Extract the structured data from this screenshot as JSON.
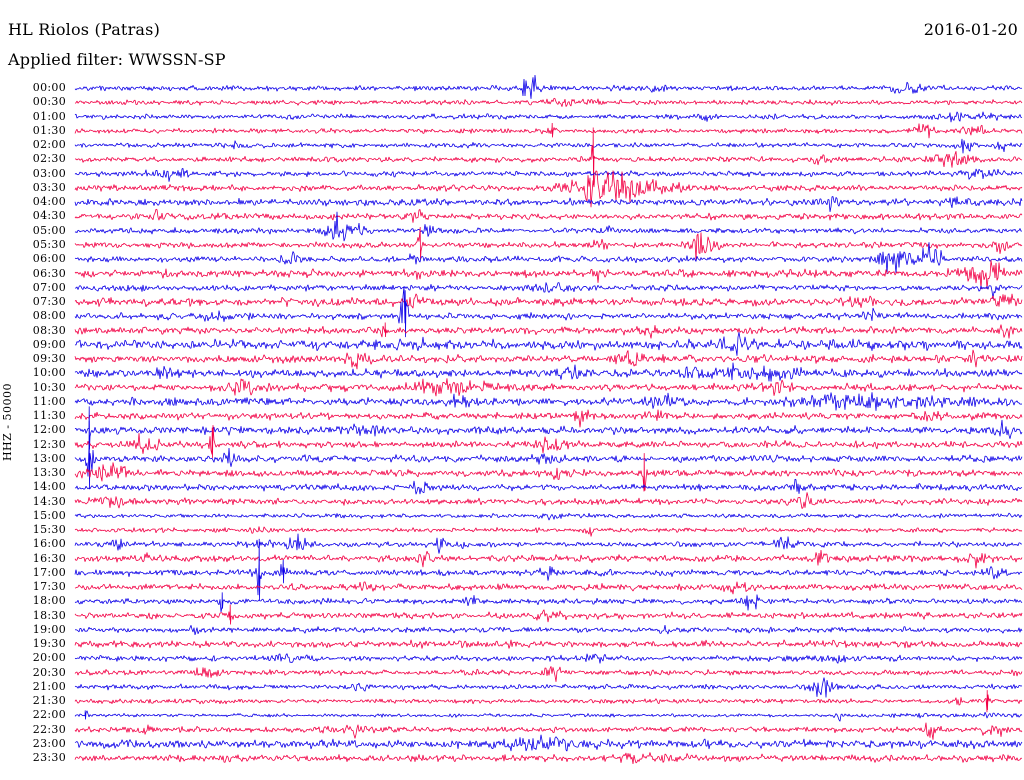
{
  "header": {
    "station_line": "HL Riolos (Patras)",
    "filter_line": "Applied filter: WWSSN-SP",
    "date": "2016-01-20"
  },
  "axis": {
    "ylabel": "HHZ - 50000"
  },
  "chart_data": {
    "type": "line",
    "subtype": "helicorder-dayplot",
    "title": "HL Riolos (Patras)",
    "filter": "WWSSN-SP",
    "date": "2016-01-20",
    "ylabel": "HHZ - 50000",
    "minutes_per_line": 30,
    "grid": false,
    "legend": "none",
    "colors": {
      "blue": "#0d00e8",
      "red": "#f20045",
      "text": "#000000",
      "background": "#ffffff"
    },
    "rows": [
      {
        "t": "00:00",
        "c": "b",
        "a": 2.8,
        "ev": [
          [
            0.48,
            13,
            7
          ],
          [
            0.875,
            5,
            14
          ],
          [
            0.62,
            4,
            6
          ]
        ]
      },
      {
        "t": "00:30",
        "c": "r",
        "a": 2.6,
        "ev": [
          [
            0.512,
            4,
            10
          ],
          [
            0.548,
            5,
            4
          ]
        ]
      },
      {
        "t": "01:00",
        "c": "b",
        "a": 2.6,
        "ev": [
          [
            0.665,
            4,
            5
          ],
          [
            0.94,
            4,
            20
          ]
        ]
      },
      {
        "t": "01:30",
        "c": "r",
        "a": 2.6,
        "ev": [
          [
            0.504,
            8,
            2
          ],
          [
            0.897,
            9,
            7
          ],
          [
            0.95,
            5,
            10
          ]
        ]
      },
      {
        "t": "02:00",
        "c": "b",
        "a": 2.6,
        "ev": [
          [
            0.174,
            4,
            6
          ],
          [
            0.939,
            6,
            6
          ],
          [
            0.98,
            5,
            5
          ]
        ]
      },
      {
        "t": "02:30",
        "c": "r",
        "a": 2.8,
        "ev": [
          [
            0.547,
            32,
            1.5
          ],
          [
            0.786,
            6,
            4
          ],
          [
            0.93,
            6,
            15
          ]
        ]
      },
      {
        "t": "03:00",
        "c": "b",
        "a": 2.8,
        "ev": [
          [
            0.1,
            7,
            12
          ],
          [
            0.955,
            7,
            12
          ]
        ]
      },
      {
        "t": "03:30",
        "c": "r",
        "a": 3.2,
        "ev": [
          [
            0.522,
            6,
            12
          ],
          [
            0.547,
            30,
            4
          ],
          [
            0.565,
            14,
            12
          ],
          [
            0.6,
            7,
            25
          ]
        ]
      },
      {
        "t": "04:00",
        "c": "b",
        "a": 3.8,
        "ev": [
          [
            0.796,
            6,
            10
          ],
          [
            0.93,
            5,
            8
          ]
        ]
      },
      {
        "t": "04:30",
        "c": "r",
        "a": 3.4,
        "ev": [
          [
            0.09,
            6,
            6
          ],
          [
            0.36,
            5,
            8
          ]
        ]
      },
      {
        "t": "05:00",
        "c": "b",
        "a": 3.0,
        "ev": [
          [
            0.283,
            16,
            12
          ],
          [
            0.374,
            7,
            4
          ],
          [
            0.56,
            5,
            6
          ]
        ]
      },
      {
        "t": "05:30",
        "c": "r",
        "a": 3.2,
        "ev": [
          [
            0.663,
            17,
            9
          ],
          [
            0.364,
            18,
            1.5
          ],
          [
            0.554,
            6,
            5
          ],
          [
            0.976,
            7,
            6
          ]
        ]
      },
      {
        "t": "06:00",
        "c": "b",
        "a": 3.2,
        "ev": [
          [
            0.867,
            15,
            11
          ],
          [
            0.905,
            15,
            7
          ],
          [
            0.227,
            6,
            6
          ],
          [
            0.359,
            6,
            4
          ]
        ]
      },
      {
        "t": "06:30",
        "c": "r",
        "a": 4.2,
        "ev": [
          [
            0.96,
            11,
            14
          ],
          [
            0.55,
            6,
            5
          ],
          [
            0.364,
            7,
            3
          ]
        ]
      },
      {
        "t": "07:00",
        "c": "b",
        "a": 3.4,
        "ev": [
          [
            0.97,
            9,
            4
          ],
          [
            0.5,
            4,
            10
          ]
        ]
      },
      {
        "t": "07:30",
        "c": "r",
        "a": 4.2,
        "ev": [
          [
            0.823,
            7,
            8
          ],
          [
            0.98,
            7,
            8
          ],
          [
            0.36,
            6,
            6
          ]
        ]
      },
      {
        "t": "08:00",
        "c": "b",
        "a": 3.4,
        "ev": [
          [
            0.348,
            26,
            1.5
          ],
          [
            0.348,
            11,
            4
          ],
          [
            0.839,
            6,
            8
          ],
          [
            0.15,
            5,
            8
          ]
        ]
      },
      {
        "t": "08:30",
        "c": "r",
        "a": 3.8,
        "ev": [
          [
            0.327,
            8,
            2
          ],
          [
            0.981,
            7,
            5
          ],
          [
            0.6,
            5,
            8
          ]
        ]
      },
      {
        "t": "09:00",
        "c": "b",
        "a": 5.2,
        "ev": [
          [
            0.364,
            8,
            3
          ],
          [
            0.7,
            6,
            10
          ]
        ]
      },
      {
        "t": "09:30",
        "c": "r",
        "a": 4.2,
        "ev": [
          [
            0.585,
            8,
            8
          ],
          [
            0.949,
            8,
            3
          ],
          [
            0.3,
            6,
            10
          ]
        ]
      },
      {
        "t": "10:00",
        "c": "b",
        "a": 4.4,
        "ev": [
          [
            0.095,
            7,
            6
          ],
          [
            0.701,
            6,
            40
          ],
          [
            0.52,
            6,
            8
          ]
        ]
      },
      {
        "t": "10:30",
        "c": "r",
        "a": 4.0,
        "ev": [
          [
            0.179,
            10,
            7
          ],
          [
            0.396,
            8,
            25
          ],
          [
            0.74,
            6,
            8
          ]
        ]
      },
      {
        "t": "11:00",
        "c": "b",
        "a": 4.4,
        "ev": [
          [
            0.406,
            9,
            7
          ],
          [
            0.86,
            6.5,
            55
          ],
          [
            0.62,
            6,
            8
          ]
        ]
      },
      {
        "t": "11:30",
        "c": "r",
        "a": 3.8,
        "ev": [
          [
            0.533,
            7,
            6
          ],
          [
            0.612,
            7,
            5
          ],
          [
            0.9,
            5,
            10
          ]
        ]
      },
      {
        "t": "12:00",
        "c": "b",
        "a": 4.4,
        "ev": [
          [
            0.015,
            24,
            1.5
          ],
          [
            0.98,
            7,
            6
          ],
          [
            0.3,
            5,
            10
          ]
        ]
      },
      {
        "t": "12:30",
        "c": "r",
        "a": 3.8,
        "ev": [
          [
            0.074,
            9,
            8
          ],
          [
            0.145,
            17,
            1.5
          ],
          [
            0.5,
            5,
            12
          ]
        ]
      },
      {
        "t": "13:00",
        "c": "b",
        "a": 3.8,
        "ev": [
          [
            0.015,
            38,
            1.5
          ],
          [
            0.015,
            14,
            4
          ],
          [
            0.164,
            7,
            6
          ],
          [
            0.5,
            5,
            8
          ]
        ]
      },
      {
        "t": "13:30",
        "c": "r",
        "a": 3.8,
        "ev": [
          [
            0.035,
            7,
            12
          ],
          [
            0.506,
            7,
            6
          ],
          [
            0.601,
            20,
            1.5
          ]
        ]
      },
      {
        "t": "14:00",
        "c": "b",
        "a": 3.4,
        "ev": [
          [
            0.364,
            7,
            8
          ],
          [
            0.76,
            5,
            8
          ]
        ]
      },
      {
        "t": "14:30",
        "c": "r",
        "a": 3.4,
        "ev": [
          [
            0.04,
            6,
            10
          ],
          [
            0.77,
            6,
            5
          ]
        ]
      },
      {
        "t": "15:00",
        "c": "b",
        "a": 2.4,
        "ev": [
          [
            0.5,
            3,
            10
          ]
        ]
      },
      {
        "t": "15:30",
        "c": "r",
        "a": 2.4,
        "ev": [
          [
            0.543,
            5,
            4
          ],
          [
            0.2,
            3,
            8
          ]
        ]
      },
      {
        "t": "16:00",
        "c": "b",
        "a": 3.0,
        "ev": [
          [
            0.047,
            7,
            5
          ],
          [
            0.2,
            6,
            5
          ],
          [
            0.237,
            9,
            9
          ],
          [
            0.385,
            7,
            4
          ],
          [
            0.411,
            6,
            4
          ],
          [
            0.75,
            5,
            10
          ]
        ]
      },
      {
        "t": "16:30",
        "c": "r",
        "a": 3.6,
        "ev": [
          [
            0.365,
            6,
            6
          ],
          [
            0.786,
            6,
            6
          ],
          [
            0.955,
            6,
            6
          ],
          [
            0.08,
            5,
            8
          ]
        ]
      },
      {
        "t": "17:00",
        "c": "b",
        "a": 3.4,
        "ev": [
          [
            0.194,
            34,
            1.5
          ],
          [
            0.22,
            13,
            2
          ],
          [
            0.97,
            8,
            7
          ],
          [
            0.5,
            5,
            6
          ]
        ]
      },
      {
        "t": "17:30",
        "c": "r",
        "a": 3.4,
        "ev": [
          [
            0.3,
            4,
            8
          ],
          [
            0.7,
            4,
            8
          ]
        ]
      },
      {
        "t": "18:00",
        "c": "b",
        "a": 3.0,
        "ev": [
          [
            0.712,
            8,
            6
          ],
          [
            0.155,
            9,
            2
          ],
          [
            0.42,
            4,
            6
          ]
        ]
      },
      {
        "t": "18:30",
        "c": "r",
        "a": 3.4,
        "ev": [
          [
            0.164,
            11,
            1.5
          ],
          [
            0.5,
            4,
            8
          ]
        ]
      },
      {
        "t": "19:00",
        "c": "b",
        "a": 3.0,
        "ev": [
          [
            0.127,
            8,
            3
          ],
          [
            0.62,
            5,
            4
          ]
        ]
      },
      {
        "t": "19:30",
        "c": "r",
        "a": 3.8,
        "ev": []
      },
      {
        "t": "20:00",
        "c": "b",
        "a": 3.0,
        "ev": [
          [
            0.227,
            5,
            8
          ],
          [
            0.55,
            4,
            8
          ],
          [
            0.8,
            4,
            8
          ]
        ]
      },
      {
        "t": "20:30",
        "c": "r",
        "a": 3.0,
        "ev": [
          [
            0.506,
            8,
            5
          ],
          [
            0.14,
            4,
            8
          ]
        ]
      },
      {
        "t": "21:00",
        "c": "b",
        "a": 2.8,
        "ev": [
          [
            0.791,
            12,
            8
          ],
          [
            0.3,
            4,
            6
          ]
        ]
      },
      {
        "t": "21:30",
        "c": "r",
        "a": 2.4,
        "ev": [
          [
            0.963,
            11,
            1.5
          ],
          [
            0.934,
            5,
            3
          ]
        ]
      },
      {
        "t": "22:00",
        "c": "b",
        "a": 1.8,
        "ev": [
          [
            0.011,
            5,
            2
          ],
          [
            0.809,
            6,
            4
          ],
          [
            0.88,
            3,
            15
          ],
          [
            0.97,
            3,
            10
          ]
        ]
      },
      {
        "t": "22:30",
        "c": "r",
        "a": 3.0,
        "ev": [
          [
            0.079,
            5,
            5
          ],
          [
            0.29,
            5,
            18
          ],
          [
            0.902,
            9,
            4
          ],
          [
            0.97,
            5,
            8
          ]
        ]
      },
      {
        "t": "23:00",
        "c": "b",
        "a": 4.4,
        "ev": [
          [
            0.5,
            4,
            30
          ]
        ]
      },
      {
        "t": "23:30",
        "c": "r",
        "a": 3.8,
        "ev": [
          [
            0.158,
            7,
            3
          ],
          [
            0.6,
            4,
            20
          ]
        ]
      }
    ]
  }
}
